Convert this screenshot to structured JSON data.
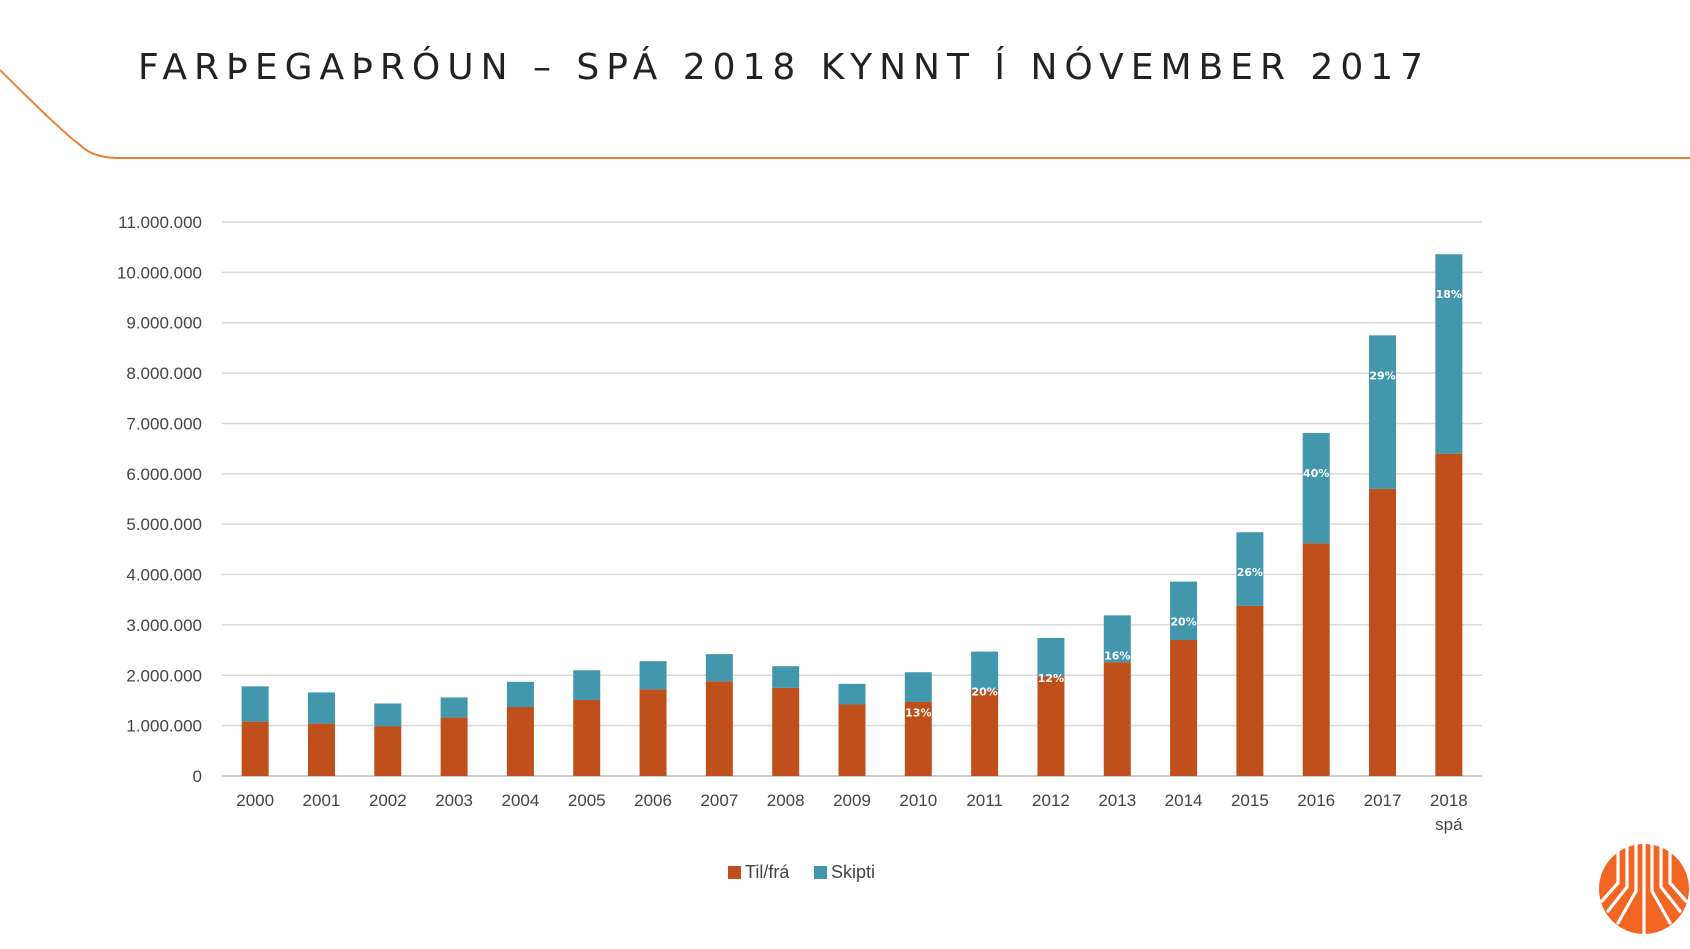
{
  "slide": {
    "title": "FARÞEGAÞRÓUN – SPÁ 2018 KYNNT Í NÓVEMBER 2017"
  },
  "colors": {
    "accent": "#E8823A",
    "grid": "#D9D9D9",
    "axis": "#BFBFBF",
    "logo": "#F26522"
  },
  "logo": {
    "icon": "isavia-logo-icon"
  },
  "chart_data": {
    "type": "bar",
    "stacked": true,
    "categories": [
      "2000",
      "2001",
      "2002",
      "2003",
      "2004",
      "2005",
      "2006",
      "2007",
      "2008",
      "2009",
      "2010",
      "2011",
      "2012",
      "2013",
      "2014",
      "2015",
      "2016",
      "2017",
      "2018\nspá"
    ],
    "series": [
      {
        "name": "Til/frá",
        "color": "#C0501B",
        "values": [
          1080000,
          1040000,
          990000,
          1160000,
          1370000,
          1510000,
          1720000,
          1880000,
          1750000,
          1420000,
          1470000,
          1710000,
          1980000,
          2260000,
          2700000,
          3380000,
          4620000,
          5700000,
          6400000
        ]
      },
      {
        "name": "Skipti",
        "color": "#4397AC",
        "values": [
          700000,
          620000,
          450000,
          400000,
          500000,
          590000,
          560000,
          540000,
          430000,
          410000,
          590000,
          760000,
          760000,
          930000,
          1160000,
          1460000,
          2190000,
          3050000,
          3960000
        ]
      }
    ],
    "data_labels": [
      "",
      "",
      "",
      "",
      "",
      "",
      "",
      "",
      "",
      "",
      "13%",
      "20%",
      "12%",
      "16%",
      "20%",
      "26%",
      "40%",
      "29%",
      "18%"
    ],
    "ylim": [
      0,
      11000000
    ],
    "yticks": [
      0,
      1000000,
      2000000,
      3000000,
      4000000,
      5000000,
      6000000,
      7000000,
      8000000,
      9000000,
      10000000,
      11000000
    ],
    "ytick_labels": [
      "0",
      "1.000.000",
      "2.000.000",
      "3.000.000",
      "4.000.000",
      "5.000.000",
      "6.000.000",
      "7.000.000",
      "8.000.000",
      "9.000.000",
      "10.000.000",
      "11.000.000"
    ],
    "grid": true,
    "legend_position": "bottom-center"
  }
}
